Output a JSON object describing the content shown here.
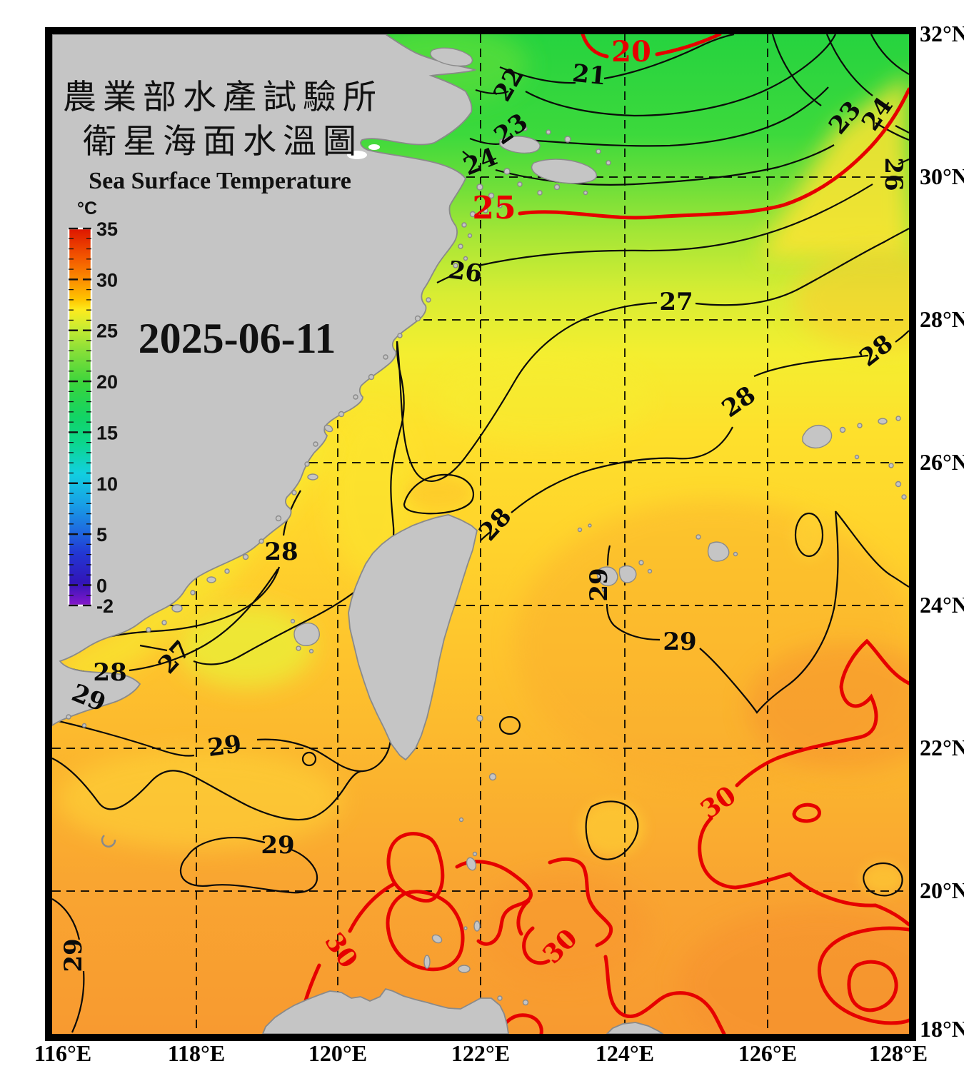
{
  "header": {
    "org_title": "農業部水產試驗所",
    "map_title": "衛星海面水溫圖",
    "title_en": "Sea Surface Temperature",
    "date": "2025-06-11"
  },
  "colorbar": {
    "unit": "°C",
    "min": -2,
    "max": 35,
    "major_ticks": [
      35,
      30,
      25,
      20,
      15,
      10,
      5,
      0,
      -2
    ],
    "tick_labels": [
      "35",
      "30",
      "25",
      "20",
      "15",
      "10",
      "5",
      "0",
      "-2"
    ],
    "gradient_top_to_bottom": [
      "#dd1500",
      "#f45a00",
      "#fb8c00",
      "#ffc400",
      "#fdeb1e",
      "#cdec30",
      "#8ce038",
      "#3ad43c",
      "#12d465",
      "#0cd68e",
      "#12cfe0",
      "#18a0e6",
      "#1e6ce0",
      "#2238d4",
      "#3214b8",
      "#8818cc"
    ]
  },
  "axes": {
    "longitude": [
      "116°E",
      "118°E",
      "120°E",
      "122°E",
      "124°E",
      "126°E",
      "128°E"
    ],
    "latitude": [
      "32°N",
      "30°N",
      "28°N",
      "26°N",
      "24°N",
      "22°N",
      "20°N",
      "18°N"
    ]
  },
  "contour_labels": [
    {
      "text": "20",
      "color": "#e60000"
    },
    {
      "text": "21",
      "color": "#0a0a0a"
    },
    {
      "text": "22",
      "color": "#0a0a0a"
    },
    {
      "text": "23",
      "color": "#0a0a0a"
    },
    {
      "text": "24",
      "color": "#0a0a0a"
    },
    {
      "text": "23",
      "color": "#0a0a0a"
    },
    {
      "text": "24",
      "color": "#0a0a0a"
    },
    {
      "text": "25",
      "color": "#e60000"
    },
    {
      "text": "26",
      "color": "#0a0a0a"
    },
    {
      "text": "26",
      "color": "#0a0a0a"
    },
    {
      "text": "27",
      "color": "#0a0a0a"
    },
    {
      "text": "28",
      "color": "#0a0a0a"
    },
    {
      "text": "28",
      "color": "#0a0a0a"
    },
    {
      "text": "28",
      "color": "#0a0a0a"
    },
    {
      "text": "28",
      "color": "#0a0a0a"
    },
    {
      "text": "29",
      "color": "#0a0a0a"
    },
    {
      "text": "27",
      "color": "#0a0a0a"
    },
    {
      "text": "28",
      "color": "#0a0a0a"
    },
    {
      "text": "29",
      "color": "#0a0a0a"
    },
    {
      "text": "29",
      "color": "#0a0a0a"
    },
    {
      "text": "29",
      "color": "#0a0a0a"
    },
    {
      "text": "29",
      "color": "#0a0a0a"
    },
    {
      "text": "29",
      "color": "#0a0a0a"
    },
    {
      "text": "30",
      "color": "#e60000"
    },
    {
      "text": "30",
      "color": "#e60000"
    },
    {
      "text": "30",
      "color": "#e60000"
    }
  ],
  "map_data": {
    "type": "sea_surface_temperature_contour_map",
    "region": {
      "lon_min": "116°E",
      "lon_max": "128°E",
      "lat_min": "18°N",
      "lat_max": "32°N"
    },
    "grid_interval_deg": 2,
    "isotherms_black_c": [
      21,
      22,
      23,
      24,
      26,
      27,
      28,
      29
    ],
    "isotherms_red_c": [
      20,
      25,
      30
    ],
    "sst_pattern": {
      "north_east_china_sea_c": "20-24",
      "central_c": "26-28",
      "south_c": "29-30"
    }
  },
  "colors": {
    "land": "#c5c5c5",
    "land_edge": "#8a8a8a",
    "contour_black": "#0a0a0a",
    "contour_red": "#e60000",
    "grid": "#000000",
    "map_border": "#000000",
    "background": "#ffffff"
  }
}
